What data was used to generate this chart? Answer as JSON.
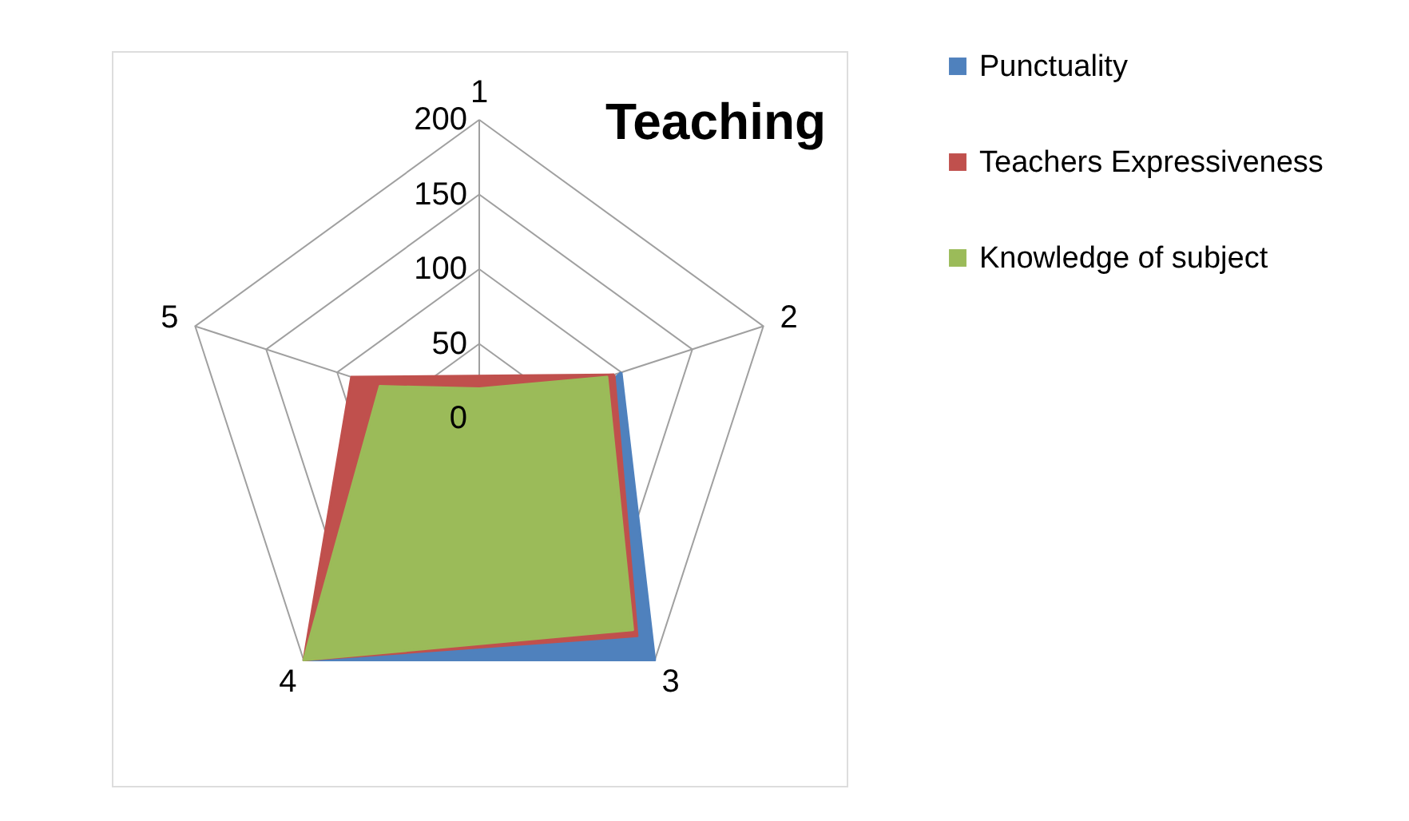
{
  "chart_data": {
    "type": "radar",
    "title": "Teaching",
    "categories": [
      "1",
      "2",
      "3",
      "4",
      "5"
    ],
    "series": [
      {
        "name": "Punctuality",
        "color": "#4f81bd",
        "values": [
          null,
          100,
          200,
          200,
          null
        ]
      },
      {
        "name": "Teachers Expressiveness",
        "color": "#c0504d",
        "values": [
          null,
          95,
          180,
          200,
          90
        ]
      },
      {
        "name": "Knowledge of subject",
        "color": "#9bbb59",
        "values": [
          20,
          90,
          175,
          200,
          70
        ]
      }
    ],
    "ylim": [
      0,
      200
    ],
    "yticks": [
      0,
      50,
      100,
      150,
      200
    ],
    "legend": "right"
  }
}
